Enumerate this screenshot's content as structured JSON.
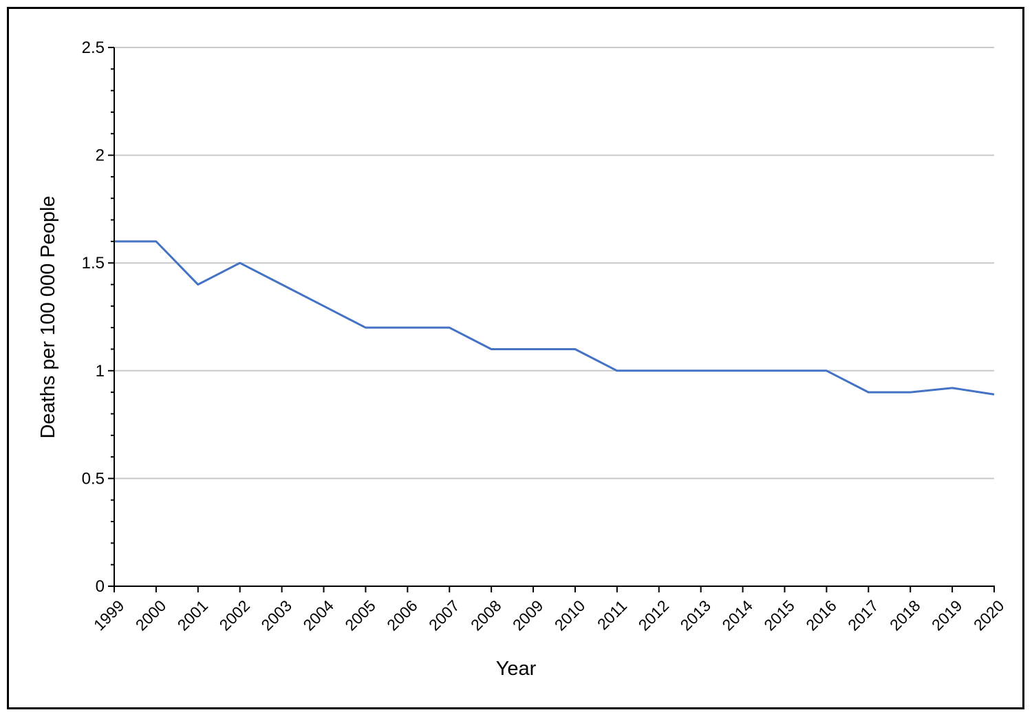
{
  "chart_data": {
    "type": "line",
    "xlabel": "Year",
    "ylabel": "Deaths per 100 000 People",
    "ylim": [
      0,
      2.5
    ],
    "y_major_ticks": [
      "0",
      "0.5",
      "1",
      "1.5",
      "2",
      "2.5"
    ],
    "y_minor_step": 0.1,
    "grid": "horizontal major gridlines",
    "x": [
      "1999",
      "2000",
      "2001",
      "2002",
      "2003",
      "2004",
      "2005",
      "2006",
      "2007",
      "2008",
      "2009",
      "2010",
      "2011",
      "2012",
      "2013",
      "2014",
      "2015",
      "2016",
      "2017",
      "2018",
      "2019",
      "2020"
    ],
    "series": [
      {
        "values": [
          1.6,
          1.6,
          1.4,
          1.5,
          1.4,
          1.3,
          1.2,
          1.2,
          1.2,
          1.1,
          1.1,
          1.1,
          1.0,
          1.0,
          1.0,
          1.0,
          1.0,
          1.0,
          0.9,
          0.9,
          0.92,
          0.89
        ],
        "color": "#4472C4"
      }
    ],
    "gridline_color": "#C8C8C8"
  }
}
